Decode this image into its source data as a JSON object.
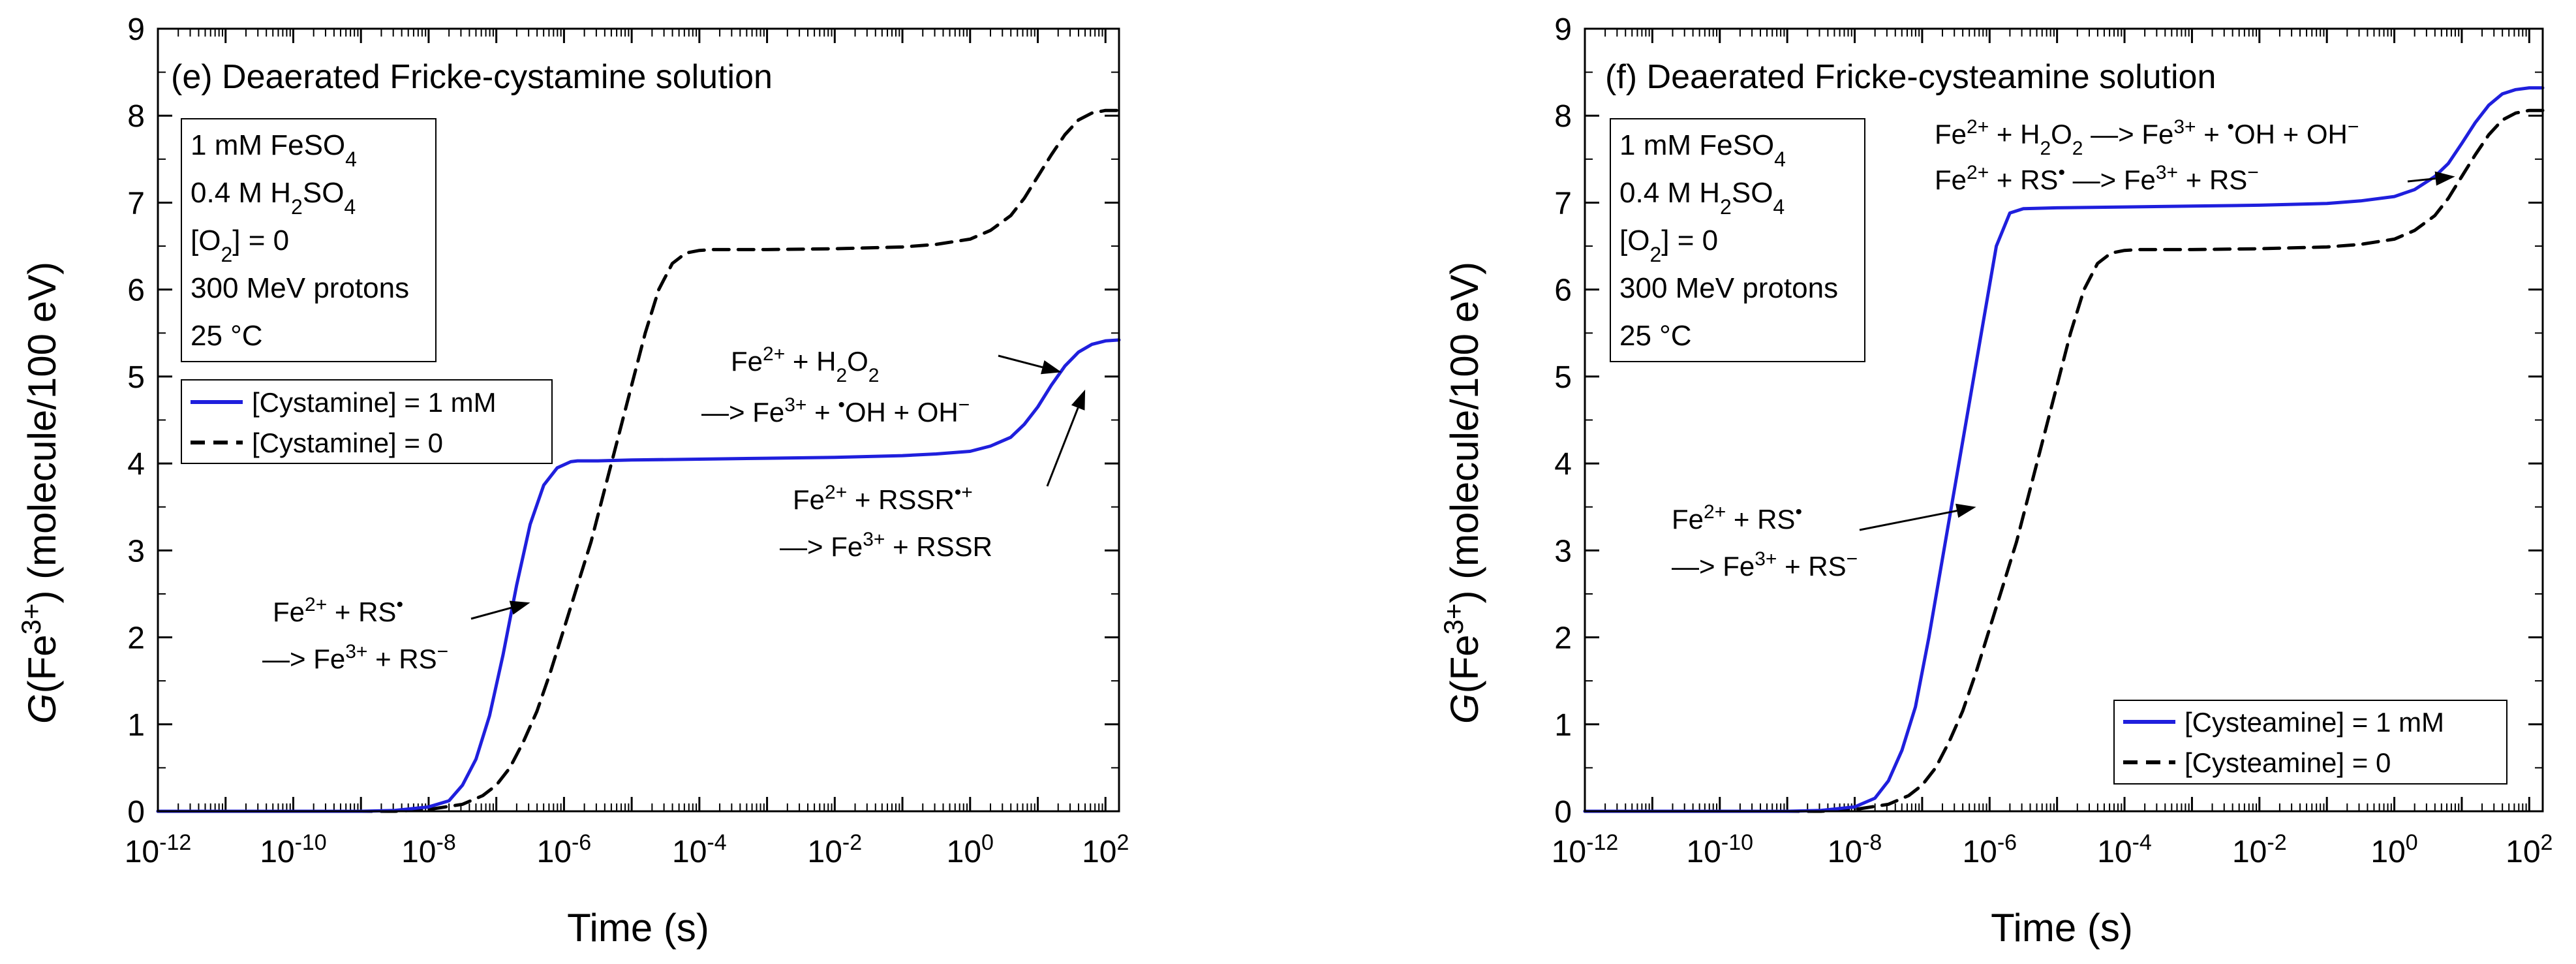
{
  "chart_data": [
    {
      "type": "line",
      "panel": "(e)",
      "title": "Deaerated Fricke-cystamine solution",
      "xlabel": "Time (s)",
      "ylabel": "G(Fe3+) (molecule/100 eV)",
      "x_scale": "log",
      "xlim_exp": [
        -12,
        2.2
      ],
      "ylim": [
        0,
        9
      ],
      "x_tick_exponents": [
        "-12",
        "-10",
        "-8",
        "-6",
        "-4",
        "-2",
        "0",
        "2"
      ],
      "x_tick_base": "10",
      "y_ticks": [
        "0",
        "1",
        "2",
        "3",
        "4",
        "5",
        "6",
        "7",
        "8",
        "9"
      ],
      "conditions": [
        "1 mM FeSO4",
        "0.4 M H2SO4",
        "[O2] = 0",
        "300 MeV protons",
        "25 °C"
      ],
      "legend": [
        "[Cystamine] = 1 mM",
        "[Cystamine] = 0"
      ],
      "series": [
        {
          "name": "[Cystamine] = 1 mM",
          "color": "#1f1fdd",
          "style": "solid",
          "log10_t": [
            -12,
            -9,
            -8.5,
            -8,
            -7.7,
            -7.5,
            -7.3,
            -7.1,
            -6.9,
            -6.7,
            -6.5,
            -6.3,
            -6.1,
            -5.9,
            -5.8,
            -5.5,
            -5,
            -4,
            -3,
            -2,
            -1,
            -0.5,
            0,
            0.3,
            0.6,
            0.8,
            1,
            1.2,
            1.4,
            1.6,
            1.8,
            2,
            2.2
          ],
          "values": [
            0,
            0,
            0.01,
            0.05,
            0.12,
            0.3,
            0.6,
            1.1,
            1.8,
            2.6,
            3.3,
            3.75,
            3.95,
            4.02,
            4.03,
            4.03,
            4.04,
            4.05,
            4.06,
            4.07,
            4.09,
            4.11,
            4.14,
            4.2,
            4.3,
            4.45,
            4.65,
            4.9,
            5.12,
            5.28,
            5.37,
            5.41,
            5.42
          ]
        },
        {
          "name": "[Cystamine] = 0",
          "color": "#000000",
          "style": "dashed",
          "log10_t": [
            -12,
            -8.5,
            -8,
            -7.5,
            -7.2,
            -7,
            -6.8,
            -6.6,
            -6.4,
            -6.2,
            -6,
            -5.8,
            -5.6,
            -5.4,
            -5.2,
            -5,
            -4.8,
            -4.6,
            -4.4,
            -4.2,
            -4,
            -3.8,
            -3.5,
            -3,
            -2,
            -1,
            -0.5,
            0,
            0.3,
            0.6,
            0.8,
            1,
            1.2,
            1.4,
            1.6,
            1.8,
            2,
            2.2
          ],
          "values": [
            0,
            0,
            0.02,
            0.08,
            0.18,
            0.3,
            0.5,
            0.8,
            1.15,
            1.6,
            2.1,
            2.6,
            3.1,
            3.7,
            4.3,
            4.9,
            5.5,
            6.0,
            6.3,
            6.42,
            6.45,
            6.46,
            6.46,
            6.46,
            6.47,
            6.49,
            6.52,
            6.58,
            6.68,
            6.85,
            7.05,
            7.3,
            7.55,
            7.78,
            7.95,
            8.03,
            8.06,
            8.06
          ]
        }
      ],
      "annotations": [
        {
          "lines": [
            "Fe2+ + H2O2",
            "—> Fe3+ + •OH + OH−"
          ],
          "arrow_to": [
            1.35,
            5.05
          ]
        },
        {
          "lines": [
            "Fe2+ + RSSR•+",
            "—> Fe3+ + RSSR"
          ],
          "arrow_to": [
            1.7,
            4.85
          ]
        },
        {
          "lines": [
            "Fe2+ + RS•",
            "—> Fe3+ + RS−"
          ],
          "arrow_to": [
            -6.5,
            2.4
          ]
        }
      ]
    },
    {
      "type": "line",
      "panel": "(f)",
      "title": "Deaerated Fricke-cysteamine solution",
      "xlabel": "Time (s)",
      "ylabel": "G(Fe3+) (molecule/100 eV)",
      "x_scale": "log",
      "xlim_exp": [
        -12,
        2.2
      ],
      "ylim": [
        0,
        9
      ],
      "x_tick_exponents": [
        "-12",
        "-10",
        "-8",
        "-6",
        "-4",
        "-2",
        "0",
        "2"
      ],
      "x_tick_base": "10",
      "y_ticks": [
        "0",
        "1",
        "2",
        "3",
        "4",
        "5",
        "6",
        "7",
        "8",
        "9"
      ],
      "conditions": [
        "1 mM FeSO4",
        "0.4 M H2SO4",
        "[O2] = 0",
        "300 MeV protons",
        "25 °C"
      ],
      "legend": [
        "[Cysteamine] = 1 mM",
        "[Cysteamine] = 0"
      ],
      "series": [
        {
          "name": "[Cysteamine] = 1 mM",
          "color": "#1f1fdd",
          "style": "solid",
          "log10_t": [
            -12,
            -9,
            -8.5,
            -8,
            -7.7,
            -7.5,
            -7.3,
            -7.1,
            -6.9,
            -6.7,
            -6.5,
            -6.3,
            -6.1,
            -5.9,
            -5.7,
            -5.5,
            -5,
            -4,
            -3,
            -2,
            -1,
            -0.5,
            0,
            0.3,
            0.6,
            0.8,
            1,
            1.2,
            1.4,
            1.6,
            1.8,
            2,
            2.2
          ],
          "values": [
            0,
            0,
            0.01,
            0.05,
            0.15,
            0.35,
            0.7,
            1.2,
            2.0,
            2.9,
            3.8,
            4.7,
            5.6,
            6.5,
            6.88,
            6.93,
            6.94,
            6.95,
            6.96,
            6.97,
            6.99,
            7.02,
            7.07,
            7.15,
            7.3,
            7.45,
            7.68,
            7.92,
            8.12,
            8.25,
            8.3,
            8.32,
            8.32
          ]
        },
        {
          "name": "[Cysteamine] = 0",
          "color": "#000000",
          "style": "dashed",
          "log10_t": [
            -12,
            -8.5,
            -8,
            -7.5,
            -7.2,
            -7,
            -6.8,
            -6.6,
            -6.4,
            -6.2,
            -6,
            -5.8,
            -5.6,
            -5.4,
            -5.2,
            -5,
            -4.8,
            -4.6,
            -4.4,
            -4.2,
            -4,
            -3.8,
            -3.5,
            -3,
            -2,
            -1,
            -0.5,
            0,
            0.3,
            0.6,
            0.8,
            1,
            1.2,
            1.4,
            1.6,
            1.8,
            2,
            2.2
          ],
          "values": [
            0,
            0,
            0.02,
            0.08,
            0.18,
            0.3,
            0.5,
            0.8,
            1.15,
            1.6,
            2.1,
            2.6,
            3.1,
            3.7,
            4.3,
            4.9,
            5.5,
            6.0,
            6.3,
            6.42,
            6.45,
            6.46,
            6.46,
            6.46,
            6.47,
            6.49,
            6.52,
            6.58,
            6.68,
            6.85,
            7.05,
            7.3,
            7.55,
            7.78,
            7.95,
            8.03,
            8.06,
            8.06
          ]
        }
      ],
      "annotations": [
        {
          "lines": [
            "Fe2+ + H2O2 —> Fe3+ + •OH + OH−",
            "Fe2+ + RS• —> Fe3+ + RS−"
          ],
          "arrow_to": [
            0.9,
            7.3
          ]
        },
        {
          "lines": [
            "Fe2+ + RS•",
            "—> Fe3+ + RS−"
          ],
          "arrow_to": [
            -6.2,
            3.5
          ]
        }
      ]
    }
  ]
}
